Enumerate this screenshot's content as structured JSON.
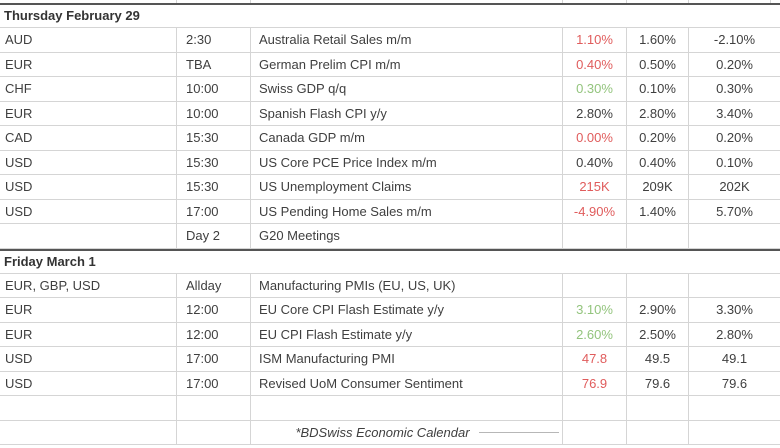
{
  "colors": {
    "red": "#e05c5c",
    "green": "#93c47d",
    "text": "#3f3f3f"
  },
  "calendar": {
    "sections": [
      {
        "title": "Thursday February 29",
        "rows": [
          {
            "currency": "AUD",
            "time": "2:30",
            "event": "Australia Retail Sales m/m",
            "actual": "1.10%",
            "actual_color": "red",
            "forecast": "1.60%",
            "previous": "-2.10%"
          },
          {
            "currency": "EUR",
            "time": "TBA",
            "event": "German Prelim CPI m/m",
            "actual": "0.40%",
            "actual_color": "red",
            "forecast": "0.50%",
            "previous": "0.20%"
          },
          {
            "currency": "CHF",
            "time": "10:00",
            "event": "Swiss GDP q/q",
            "actual": "0.30%",
            "actual_color": "green",
            "forecast": "0.10%",
            "previous": "0.30%"
          },
          {
            "currency": "EUR",
            "time": "10:00",
            "event": "Spanish Flash CPI y/y",
            "actual": "2.80%",
            "actual_color": "default",
            "forecast": "2.80%",
            "previous": "3.40%"
          },
          {
            "currency": "CAD",
            "time": "15:30",
            "event": "Canada GDP m/m",
            "actual": "0.00%",
            "actual_color": "red",
            "forecast": "0.20%",
            "previous": "0.20%"
          },
          {
            "currency": "USD",
            "time": "15:30",
            "event": "US Core PCE Price Index m/m",
            "actual": "0.40%",
            "actual_color": "default",
            "forecast": "0.40%",
            "previous": "0.10%"
          },
          {
            "currency": "USD",
            "time": "15:30",
            "event": "US Unemployment Claims",
            "actual": "215K",
            "actual_color": "red",
            "forecast": "209K",
            "previous": "202K"
          },
          {
            "currency": "USD",
            "time": "17:00",
            "event": "US Pending Home Sales m/m",
            "actual": "-4.90%",
            "actual_color": "red",
            "forecast": "1.40%",
            "previous": "5.70%"
          },
          {
            "currency": "",
            "time": "Day 2",
            "event": "G20 Meetings",
            "actual": "",
            "actual_color": "default",
            "forecast": "",
            "previous": ""
          }
        ]
      },
      {
        "title": "Friday March 1",
        "rows": [
          {
            "currency": "EUR, GBP, USD",
            "time": "Allday",
            "event": "Manufacturing PMIs (EU, US, UK)",
            "actual": "",
            "actual_color": "default",
            "forecast": "",
            "previous": ""
          },
          {
            "currency": "EUR",
            "time": "12:00",
            "event": "EU Core CPI Flash Estimate y/y",
            "actual": "3.10%",
            "actual_color": "green",
            "forecast": "2.90%",
            "previous": "3.30%"
          },
          {
            "currency": "EUR",
            "time": "12:00",
            "event": "EU CPI Flash Estimate y/y",
            "actual": "2.60%",
            "actual_color": "green",
            "forecast": "2.50%",
            "previous": "2.80%"
          },
          {
            "currency": "USD",
            "time": "17:00",
            "event": "ISM Manufacturing PMI",
            "actual": "47.8",
            "actual_color": "red",
            "forecast": "49.5",
            "previous": "49.1"
          },
          {
            "currency": "USD",
            "time": "17:00",
            "event": "Revised UoM Consumer Sentiment",
            "actual": "76.9",
            "actual_color": "red",
            "forecast": "79.6",
            "previous": "79.6"
          },
          {
            "currency": "",
            "time": "",
            "event": "",
            "actual": "",
            "actual_color": "default",
            "forecast": "",
            "previous": ""
          }
        ]
      }
    ],
    "footer_note": "*BDSwiss Economic Calendar"
  }
}
